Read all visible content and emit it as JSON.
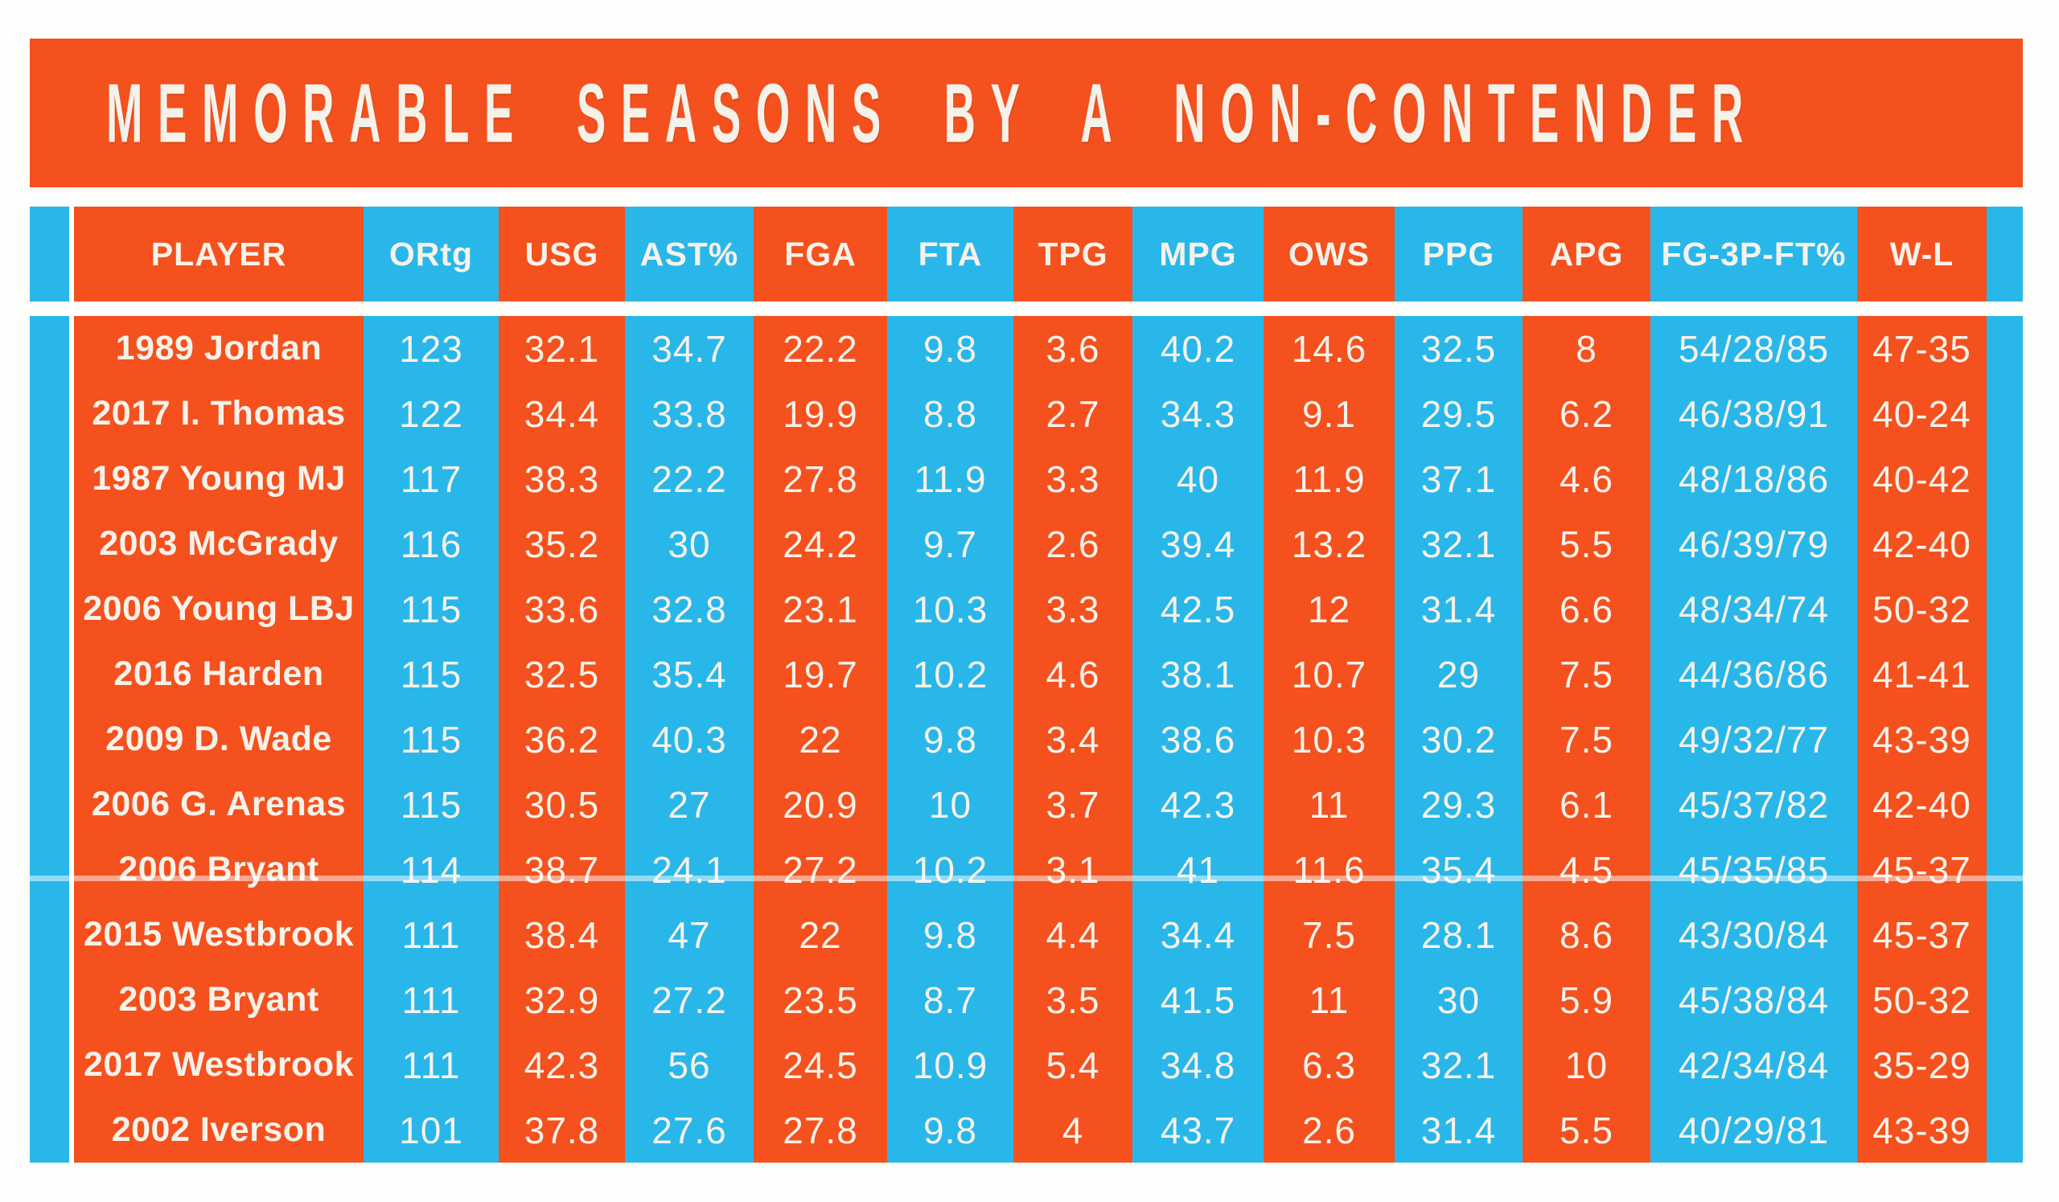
{
  "colors": {
    "orange": "#F4511E",
    "cyan": "#29B7EA",
    "text": "#F6F2EA",
    "background": "#FDFDFC"
  },
  "chart_data": {
    "type": "table",
    "title": "MEMORABLE SEASONS BY A NON-CONTENDER",
    "legend": "none",
    "grid": "off",
    "stripe_pattern": "columns alternate orange/cyan with cyan gutter stripes on both outer edges",
    "columns": [
      {
        "key": "player",
        "label": "PLAYER",
        "stripe": "orange"
      },
      {
        "key": "ortg",
        "label": "ORtg",
        "stripe": "cyan"
      },
      {
        "key": "usg",
        "label": "USG",
        "stripe": "orange"
      },
      {
        "key": "astpct",
        "label": "AST%",
        "stripe": "cyan"
      },
      {
        "key": "fga",
        "label": "FGA",
        "stripe": "orange"
      },
      {
        "key": "fta",
        "label": "FTA",
        "stripe": "cyan"
      },
      {
        "key": "tpg",
        "label": "TPG",
        "stripe": "orange"
      },
      {
        "key": "mpg",
        "label": "MPG",
        "stripe": "cyan"
      },
      {
        "key": "ows",
        "label": "OWS",
        "stripe": "orange"
      },
      {
        "key": "ppg",
        "label": "PPG",
        "stripe": "cyan"
      },
      {
        "key": "apg",
        "label": "APG",
        "stripe": "orange"
      },
      {
        "key": "fg3ftpct",
        "label": "FG-3P-FT%",
        "stripe": "cyan"
      },
      {
        "key": "wl",
        "label": "W-L",
        "stripe": "orange"
      }
    ],
    "rows": [
      [
        "1989 Jordan",
        "123",
        "32.1",
        "34.7",
        "22.2",
        "9.8",
        "3.6",
        "40.2",
        "14.6",
        "32.5",
        "8",
        "54/28/85",
        "47-35"
      ],
      [
        "2017 I. Thomas",
        "122",
        "34.4",
        "33.8",
        "19.9",
        "8.8",
        "2.7",
        "34.3",
        "9.1",
        "29.5",
        "6.2",
        "46/38/91",
        "40-24"
      ],
      [
        "1987 Young MJ",
        "117",
        "38.3",
        "22.2",
        "27.8",
        "11.9",
        "3.3",
        "40",
        "11.9",
        "37.1",
        "4.6",
        "48/18/86",
        "40-42"
      ],
      [
        "2003 McGrady",
        "116",
        "35.2",
        "30",
        "24.2",
        "9.7",
        "2.6",
        "39.4",
        "13.2",
        "32.1",
        "5.5",
        "46/39/79",
        "42-40"
      ],
      [
        "2006 Young LBJ",
        "115",
        "33.6",
        "32.8",
        "23.1",
        "10.3",
        "3.3",
        "42.5",
        "12",
        "31.4",
        "6.6",
        "48/34/74",
        "50-32"
      ],
      [
        "2016 Harden",
        "115",
        "32.5",
        "35.4",
        "19.7",
        "10.2",
        "4.6",
        "38.1",
        "10.7",
        "29",
        "7.5",
        "44/36/86",
        "41-41"
      ],
      [
        "2009 D. Wade",
        "115",
        "36.2",
        "40.3",
        "22",
        "9.8",
        "3.4",
        "38.6",
        "10.3",
        "30.2",
        "7.5",
        "49/32/77",
        "43-39"
      ],
      [
        "2006 G. Arenas",
        "115",
        "30.5",
        "27",
        "20.9",
        "10",
        "3.7",
        "42.3",
        "11",
        "29.3",
        "6.1",
        "45/37/82",
        "42-40"
      ],
      [
        "2006 Bryant",
        "114",
        "38.7",
        "24.1",
        "27.2",
        "10.2",
        "3.1",
        "41",
        "11.6",
        "35.4",
        "4.5",
        "45/35/85",
        "45-37"
      ],
      [
        "2015 Westbrook",
        "111",
        "38.4",
        "47",
        "22",
        "9.8",
        "4.4",
        "34.4",
        "7.5",
        "28.1",
        "8.6",
        "43/30/84",
        "45-37"
      ],
      [
        "2003 Bryant",
        "111",
        "32.9",
        "27.2",
        "23.5",
        "8.7",
        "3.5",
        "41.5",
        "11",
        "30",
        "5.9",
        "45/38/84",
        "50-32"
      ],
      [
        "2017 Westbrook",
        "111",
        "42.3",
        "56",
        "24.5",
        "10.9",
        "5.4",
        "34.8",
        "6.3",
        "32.1",
        "10",
        "42/34/84",
        "35-29"
      ],
      [
        "2002 Iverson",
        "101",
        "37.8",
        "27.6",
        "27.8",
        "9.8",
        "4",
        "43.7",
        "2.6",
        "31.4",
        "5.5",
        "40/29/81",
        "43-39"
      ]
    ]
  }
}
